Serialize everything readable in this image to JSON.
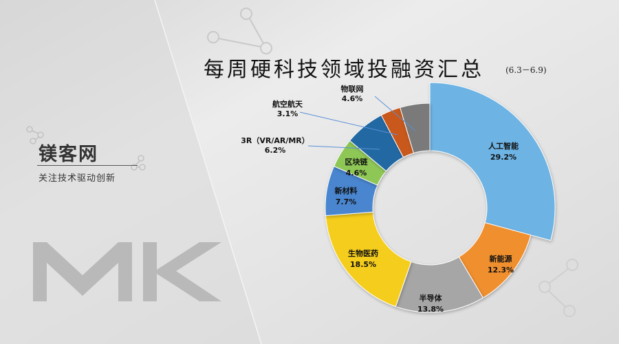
{
  "brand": {
    "name": "镁客网",
    "slogan": "关注技术驱动创新",
    "logo_letters": "MK"
  },
  "chart_data": {
    "type": "pie",
    "title": "每周硬科技领域投融资汇总",
    "subtitle": "(6.3－6.9)",
    "slices": [
      {
        "label": "人工智能",
        "value": 29.2,
        "value_label": "29.2%",
        "color": "#6db3e3"
      },
      {
        "label": "新能源",
        "value": 12.3,
        "value_label": "12.3%",
        "color": "#f08f2e"
      },
      {
        "label": "半导体",
        "value": 13.8,
        "value_label": "13.8%",
        "color": "#a6a6a6"
      },
      {
        "label": "生物医药",
        "value": 18.5,
        "value_label": "18.5%",
        "color": "#f5cd1e"
      },
      {
        "label": "新材料",
        "value": 7.7,
        "value_label": "7.7%",
        "color": "#4a86cf"
      },
      {
        "label": "区块链",
        "value": 4.6,
        "value_label": "4.6%",
        "color": "#8ec756"
      },
      {
        "label": "3R（VR/AR/MR）",
        "value": 6.2,
        "value_label": "6.2%",
        "color": "#2369a4"
      },
      {
        "label": "航空航天",
        "value": 3.1,
        "value_label": "3.1%",
        "color": "#c8591c"
      },
      {
        "label": "物联网",
        "value": 4.6,
        "value_label": "4.6%",
        "color": "#7a7a7a"
      }
    ]
  }
}
